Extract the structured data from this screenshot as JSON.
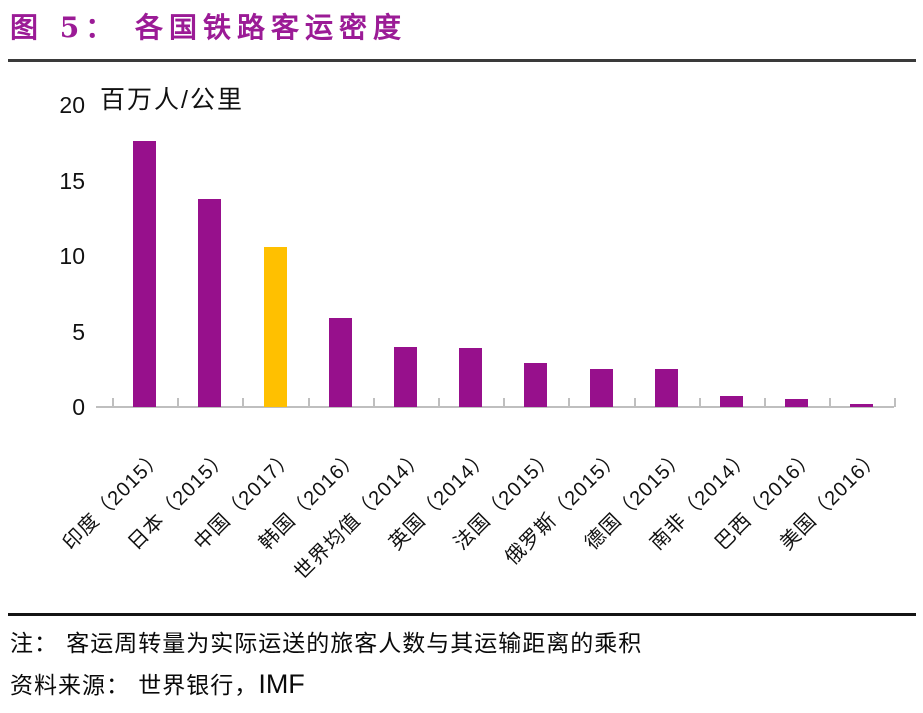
{
  "page": {
    "note": "注： 客运周转量为实际运送的旅客人数与其运输距离的乘积",
    "source_prefix": "资料来源： 世界银行，",
    "source_imf": "IMF"
  },
  "chart_data": {
    "type": "bar",
    "title": "图 5： 各国铁路客运密度",
    "ylabel": "百万人/公里",
    "xlabel": "",
    "categories": [
      "印度（2015）",
      "日本（2015）",
      "中国（2017）",
      "韩国（2016）",
      "世界均值（2014）",
      "英国（2014）",
      "法国（2015）",
      "俄罗斯（2015）",
      "德国（2015）",
      "南非（2014）",
      "巴西（2016）",
      "美国（2016）"
    ],
    "values": [
      17.6,
      13.8,
      10.6,
      5.9,
      4.0,
      3.9,
      2.9,
      2.5,
      2.5,
      0.7,
      0.5,
      0.2
    ],
    "highlight_index": 2,
    "ylim": [
      0,
      20
    ],
    "yticks": [
      0,
      5,
      10,
      15,
      20
    ],
    "grid": false,
    "legend": null,
    "colors": {
      "bar": "#97108C",
      "highlight": "#FFC000",
      "axis": "#BFBFBF",
      "title": "#9B1B96",
      "text": "#111111"
    }
  }
}
